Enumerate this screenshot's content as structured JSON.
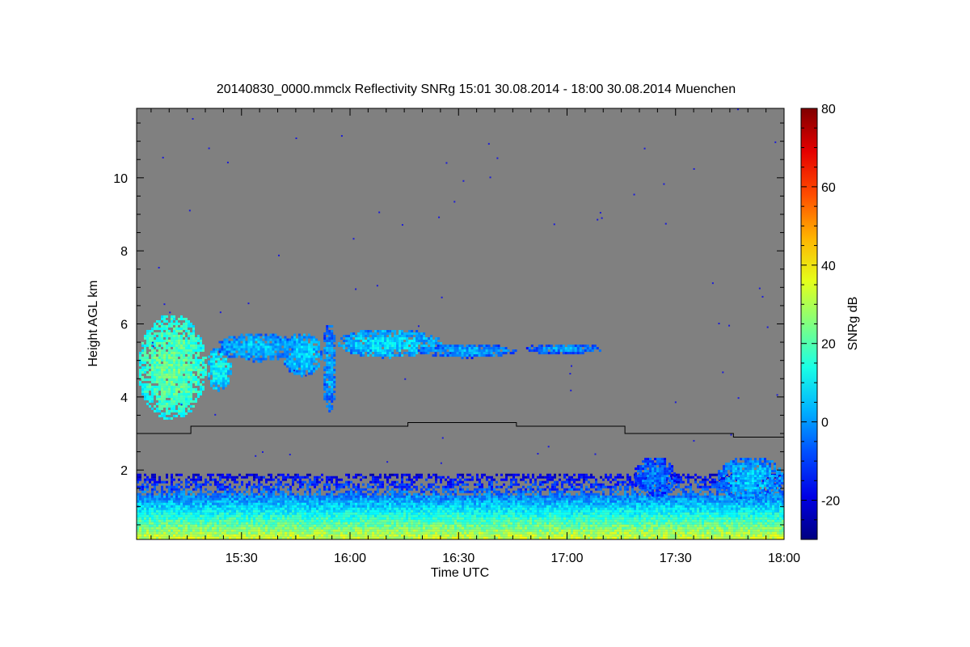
{
  "chart_data": {
    "type": "heatmap",
    "title": "20140830_0000.mmclx Reflectivity SNRg   15:01 30.08.2014 - 18:00 30.08.2014 Muenchen",
    "xlabel": "Time UTC",
    "ylabel": "Height AGL km",
    "colorbar_label": "SNRg dB",
    "x_ticks": [
      "15:30",
      "16:00",
      "16:30",
      "17:00",
      "17:30",
      "18:00"
    ],
    "y_ticks": [
      "2",
      "4",
      "6",
      "8",
      "10"
    ],
    "colorbar_ticks": [
      "80",
      "60",
      "40",
      "20",
      "0",
      "-20"
    ],
    "xlim": [
      "15:01",
      "18:00"
    ],
    "ylim": [
      0.1,
      11.9
    ],
    "colorbar_range": [
      -30,
      80
    ],
    "colormap": "jet",
    "background_color": "#808080",
    "boundary_line": {
      "name": "",
      "points": [
        {
          "time": "15:01",
          "height_km": 3.0
        },
        {
          "time": "15:16",
          "height_km": 3.0
        },
        {
          "time": "15:16",
          "height_km": 3.2
        },
        {
          "time": "16:16",
          "height_km": 3.2
        },
        {
          "time": "16:16",
          "height_km": 3.3
        },
        {
          "time": "16:46",
          "height_km": 3.3
        },
        {
          "time": "16:46",
          "height_km": 3.2
        },
        {
          "time": "17:16",
          "height_km": 3.2
        },
        {
          "time": "17:16",
          "height_km": 3.0
        },
        {
          "time": "17:46",
          "height_km": 3.0
        },
        {
          "time": "17:46",
          "height_km": 2.9
        },
        {
          "time": "18:00",
          "height_km": 2.9
        }
      ]
    },
    "echo_regions": [
      {
        "time_start": "15:01",
        "time_end": "15:20",
        "height_bottom_km": 3.4,
        "height_top_km": 6.3,
        "snr_db": 12
      },
      {
        "time_start": "15:20",
        "time_end": "15:27",
        "height_bottom_km": 4.2,
        "height_top_km": 5.4,
        "snr_db": 2
      },
      {
        "time_start": "15:23",
        "time_end": "15:45",
        "height_bottom_km": 5.0,
        "height_top_km": 5.8,
        "snr_db": -5
      },
      {
        "time_start": "15:41",
        "time_end": "15:52",
        "height_bottom_km": 4.6,
        "height_top_km": 5.8,
        "snr_db": -3
      },
      {
        "time_start": "15:52",
        "time_end": "15:56",
        "height_bottom_km": 3.6,
        "height_top_km": 6.1,
        "snr_db": -8
      },
      {
        "time_start": "15:56",
        "time_end": "16:25",
        "height_bottom_km": 5.1,
        "height_top_km": 5.9,
        "snr_db": -2
      },
      {
        "time_start": "16:18",
        "time_end": "16:46",
        "height_bottom_km": 5.1,
        "height_top_km": 5.5,
        "snr_db": -8
      },
      {
        "time_start": "16:48",
        "time_end": "17:10",
        "height_bottom_km": 5.2,
        "height_top_km": 5.5,
        "snr_db": -10
      },
      {
        "time_start": "17:18",
        "time_end": "17:30",
        "height_bottom_km": 1.3,
        "height_top_km": 2.4,
        "snr_db": -12
      },
      {
        "time_start": "17:41",
        "time_end": "18:00",
        "height_bottom_km": 1.2,
        "height_top_km": 2.4,
        "snr_db": -5
      }
    ],
    "boundary_layer": {
      "height_bottom_km": 0.1,
      "height_top_km": 1.9,
      "snr_db_at_bottom": 35,
      "snr_db_at_top": -20
    },
    "grid": false,
    "legend": "colorbar-right"
  }
}
